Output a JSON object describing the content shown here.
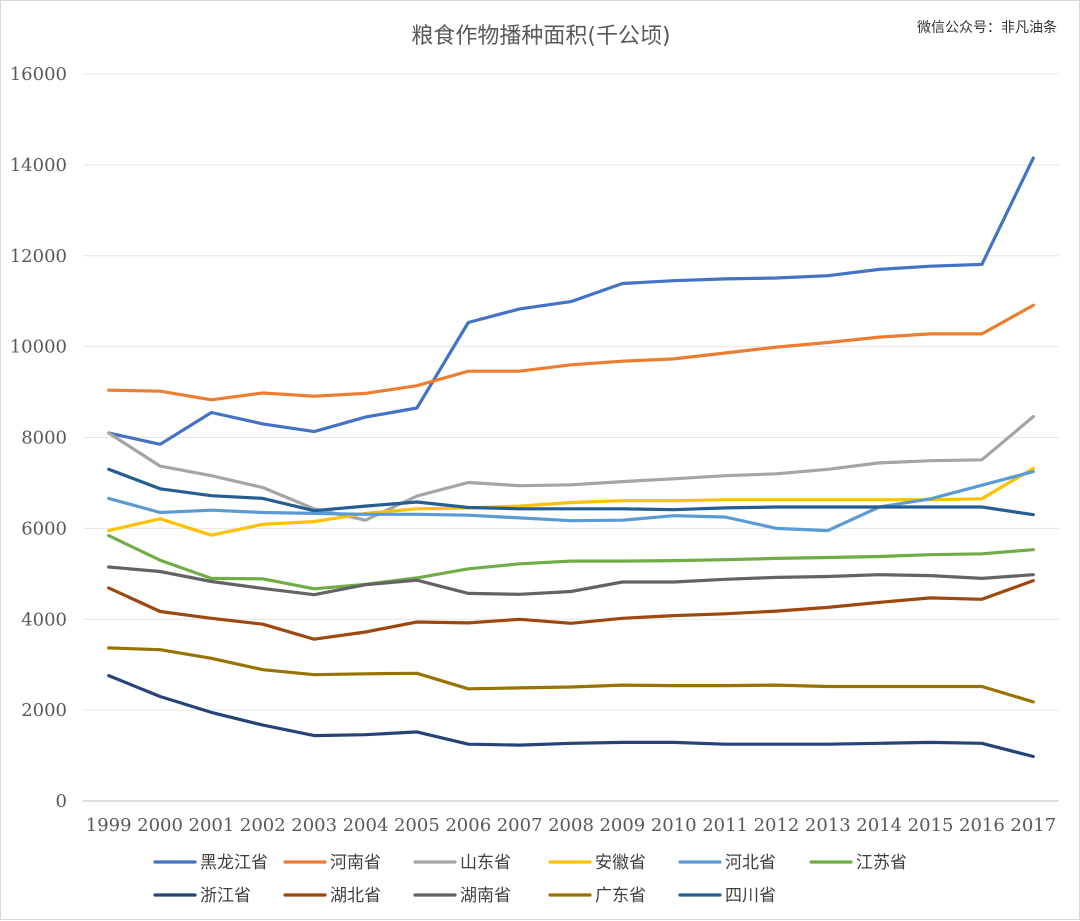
{
  "chart_data": {
    "type": "line",
    "title": "粮食作物播种面积(千公顷)",
    "watermark": "微信公众号：非凡油条",
    "xlabel": "",
    "ylabel": "",
    "x": [
      "1999",
      "2000",
      "2001",
      "2002",
      "2003",
      "2004",
      "2005",
      "2006",
      "2007",
      "2008",
      "2009",
      "2010",
      "2011",
      "2012",
      "2013",
      "2014",
      "2015",
      "2016",
      "2017"
    ],
    "ylim": [
      0,
      16000
    ],
    "yticks": [
      0,
      2000,
      4000,
      6000,
      8000,
      10000,
      12000,
      14000,
      16000
    ],
    "grid": true,
    "legend_position": "bottom",
    "series": [
      {
        "name": "黑龙江省",
        "color": "#4472C4",
        "values": [
          8100,
          7850,
          8550,
          8300,
          8130,
          8450,
          8650,
          10530,
          10830,
          10990,
          11390,
          11450,
          11490,
          11510,
          11560,
          11700,
          11770,
          11810,
          14150
        ]
      },
      {
        "name": "河南省",
        "color": "#ED7D31",
        "values": [
          9040,
          9020,
          8830,
          8980,
          8910,
          8970,
          9140,
          9460,
          9460,
          9600,
          9680,
          9730,
          9860,
          9990,
          10090,
          10210,
          10280,
          10280,
          10910
        ]
      },
      {
        "name": "山东省",
        "color": "#A5A5A5",
        "values": [
          8100,
          7370,
          7160,
          6900,
          6430,
          6180,
          6710,
          7010,
          6940,
          6960,
          7030,
          7090,
          7160,
          7200,
          7300,
          7440,
          7490,
          7510,
          8460
        ]
      },
      {
        "name": "安徽省",
        "color": "#FFC000",
        "values": [
          5950,
          6210,
          5850,
          6090,
          6150,
          6330,
          6430,
          6450,
          6490,
          6570,
          6610,
          6610,
          6630,
          6630,
          6630,
          6630,
          6630,
          6650,
          7320
        ]
      },
      {
        "name": "河北省",
        "color": "#5B9BD5",
        "values": [
          6660,
          6350,
          6400,
          6350,
          6330,
          6310,
          6310,
          6290,
          6230,
          6170,
          6180,
          6280,
          6250,
          6000,
          5950,
          6470,
          6650,
          6950,
          7250
        ]
      },
      {
        "name": "江苏省",
        "color": "#70AD47",
        "values": [
          5840,
          5300,
          4900,
          4890,
          4670,
          4770,
          4910,
          5110,
          5220,
          5280,
          5280,
          5290,
          5310,
          5340,
          5360,
          5380,
          5420,
          5440,
          5530
        ]
      },
      {
        "name": "浙江省",
        "color": "#264478",
        "values": [
          2760,
          2300,
          1950,
          1670,
          1440,
          1460,
          1520,
          1250,
          1230,
          1270,
          1290,
          1290,
          1250,
          1250,
          1250,
          1270,
          1290,
          1270,
          980
        ]
      },
      {
        "name": "湖北省",
        "color": "#9E480E",
        "values": [
          4690,
          4170,
          4020,
          3890,
          3560,
          3720,
          3940,
          3920,
          4000,
          3910,
          4020,
          4080,
          4120,
          4180,
          4260,
          4370,
          4470,
          4440,
          4850
        ]
      },
      {
        "name": "湖南省",
        "color": "#636363",
        "values": [
          5150,
          5050,
          4830,
          4680,
          4540,
          4760,
          4860,
          4570,
          4550,
          4610,
          4820,
          4820,
          4880,
          4920,
          4940,
          4980,
          4960,
          4900,
          4980
        ]
      },
      {
        "name": "广东省",
        "color": "#997300",
        "values": [
          3370,
          3330,
          3140,
          2890,
          2780,
          2800,
          2810,
          2470,
          2490,
          2510,
          2550,
          2540,
          2540,
          2550,
          2520,
          2520,
          2520,
          2520,
          2180
        ]
      },
      {
        "name": "四川省",
        "color": "#255E91",
        "values": [
          7300,
          6870,
          6720,
          6660,
          6390,
          6490,
          6580,
          6460,
          6430,
          6430,
          6430,
          6410,
          6450,
          6470,
          6470,
          6470,
          6470,
          6470,
          6300
        ]
      }
    ]
  }
}
